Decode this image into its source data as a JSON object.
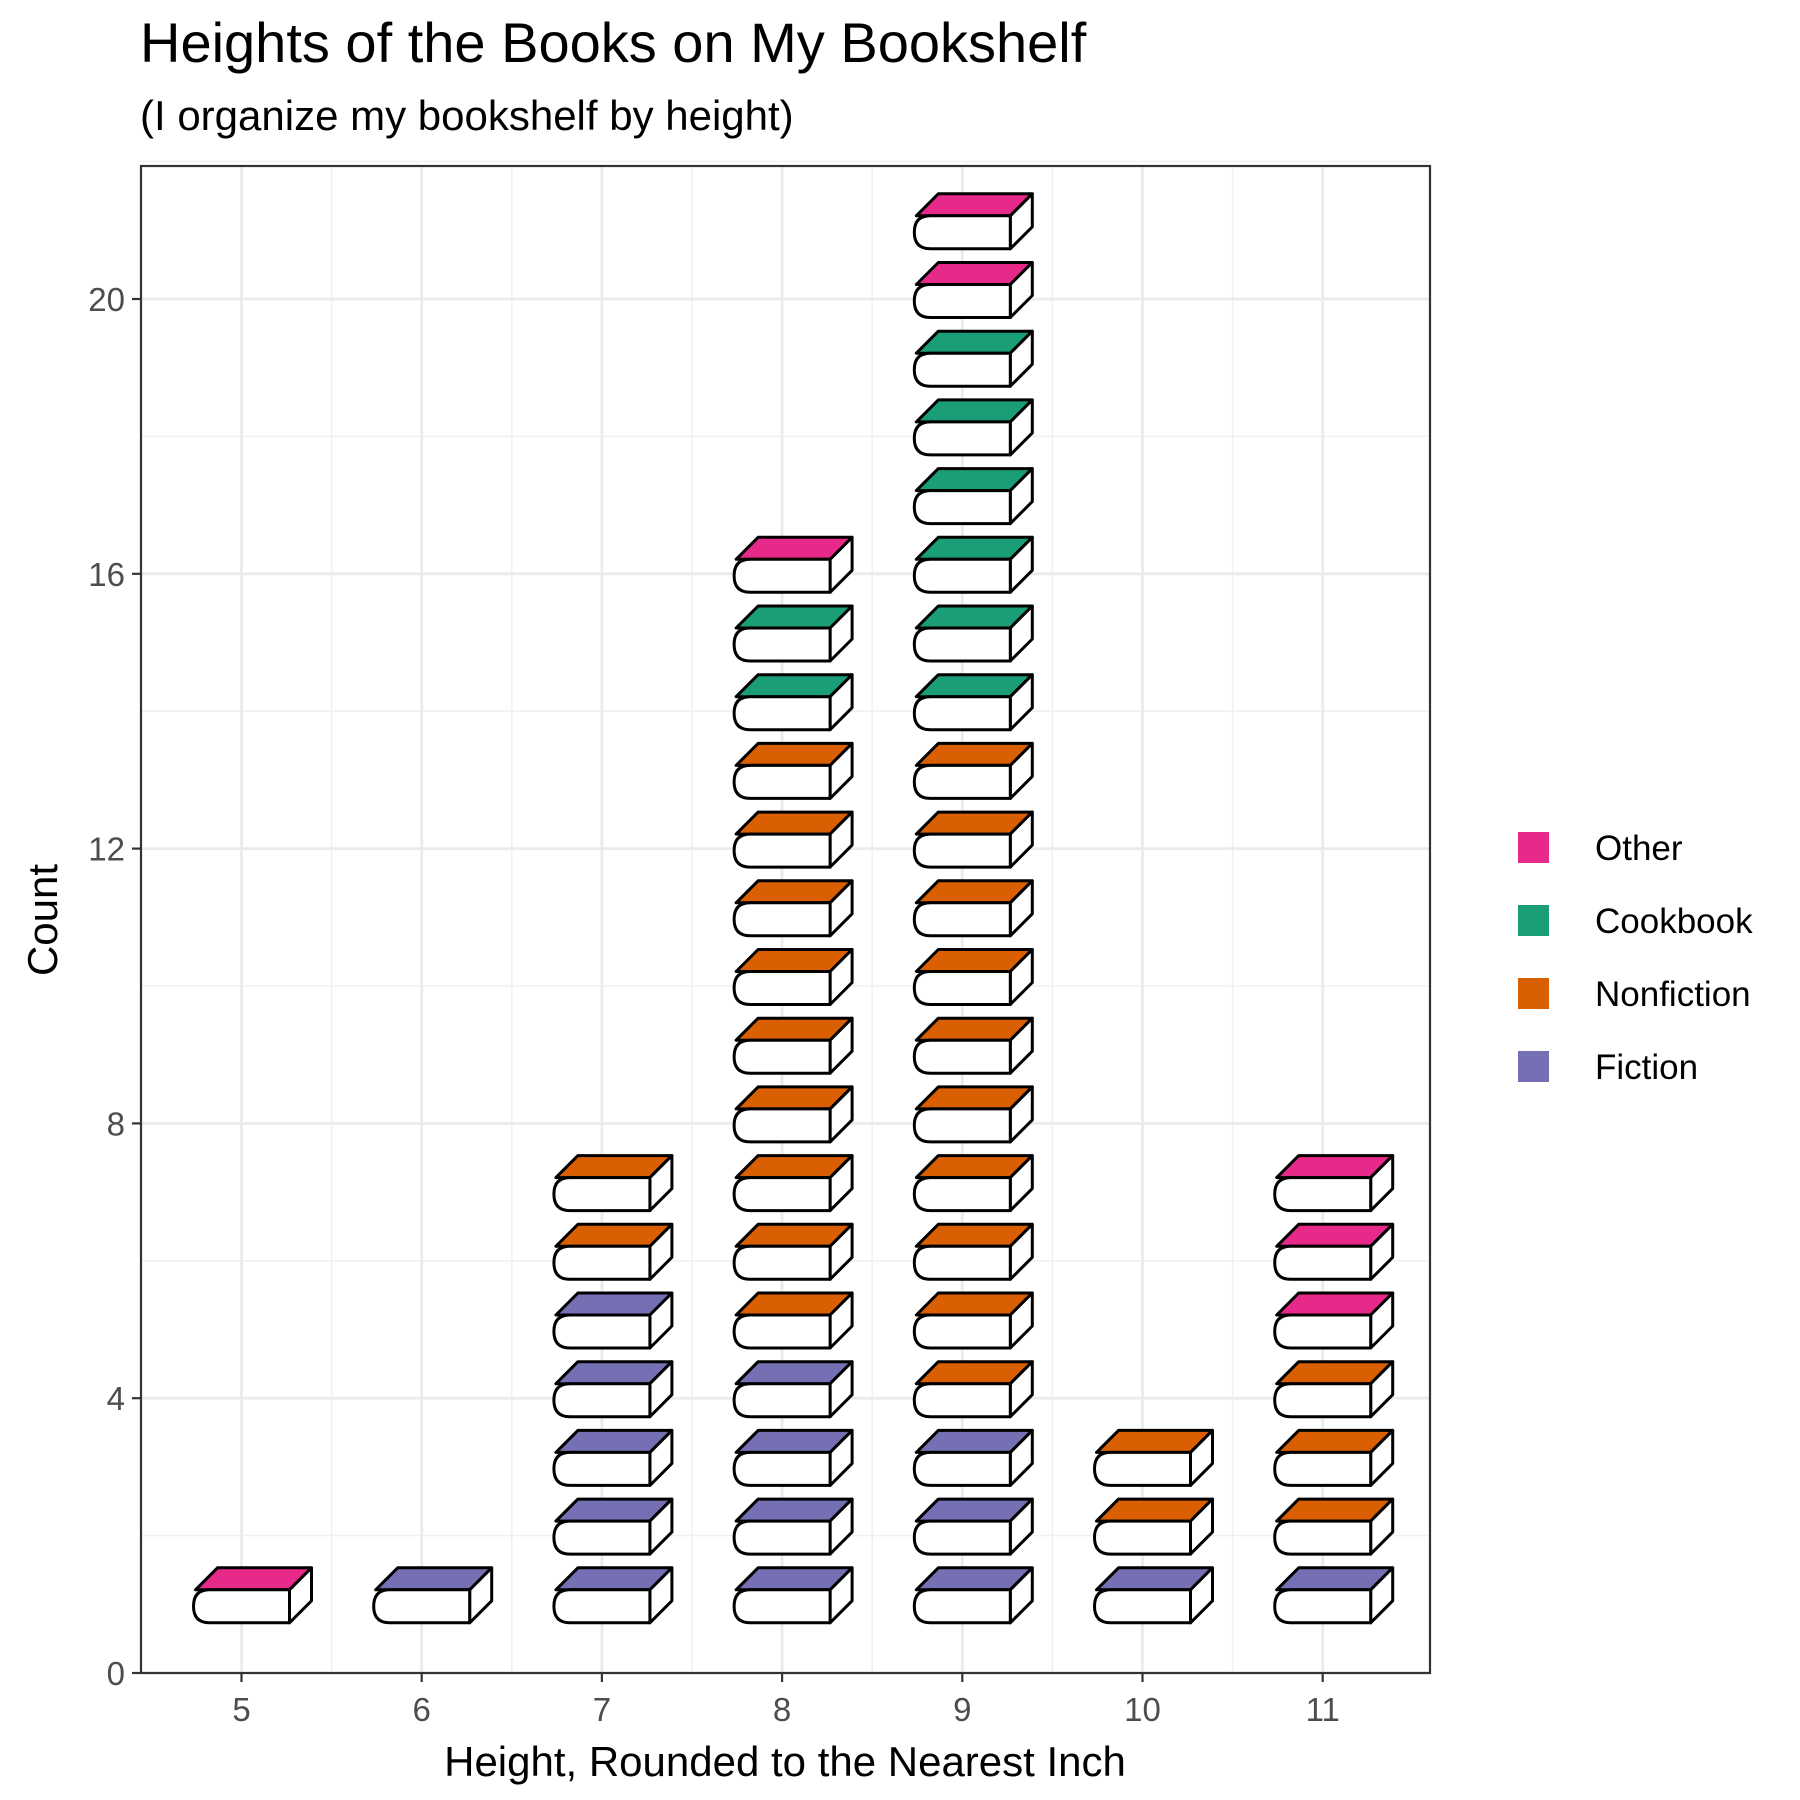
{
  "chart_data": {
    "type": "bar",
    "title": "Heights of the Books on My Bookshelf",
    "subtitle": "(I organize my bookshelf by height)",
    "xlabel": "Height, Rounded to the Nearest Inch",
    "ylabel": "Count",
    "x_ticks": [
      "5",
      "6",
      "7",
      "8",
      "9",
      "10",
      "11"
    ],
    "y_ticks": [
      "0",
      "4",
      "8",
      "12",
      "16",
      "20"
    ],
    "ylim": [
      0,
      22
    ],
    "stacked": true,
    "grid": true,
    "legend_position": "right",
    "categories": [
      "5",
      "6",
      "7",
      "8",
      "9",
      "10",
      "11"
    ],
    "series": [
      {
        "name": "Fiction",
        "color": "#7570b3",
        "values": [
          0,
          1,
          5,
          4,
          3,
          1,
          1
        ]
      },
      {
        "name": "Nonfiction",
        "color": "#d95f02",
        "values": [
          0,
          0,
          2,
          9,
          10,
          2,
          3
        ]
      },
      {
        "name": "Cookbook",
        "color": "#1b9e77",
        "values": [
          0,
          0,
          0,
          2,
          6,
          0,
          0
        ]
      },
      {
        "name": "Other",
        "color": "#e7298a",
        "values": [
          1,
          0,
          0,
          1,
          2,
          0,
          3
        ]
      }
    ],
    "legend": [
      "Other",
      "Cookbook",
      "Nonfiction",
      "Fiction"
    ]
  }
}
